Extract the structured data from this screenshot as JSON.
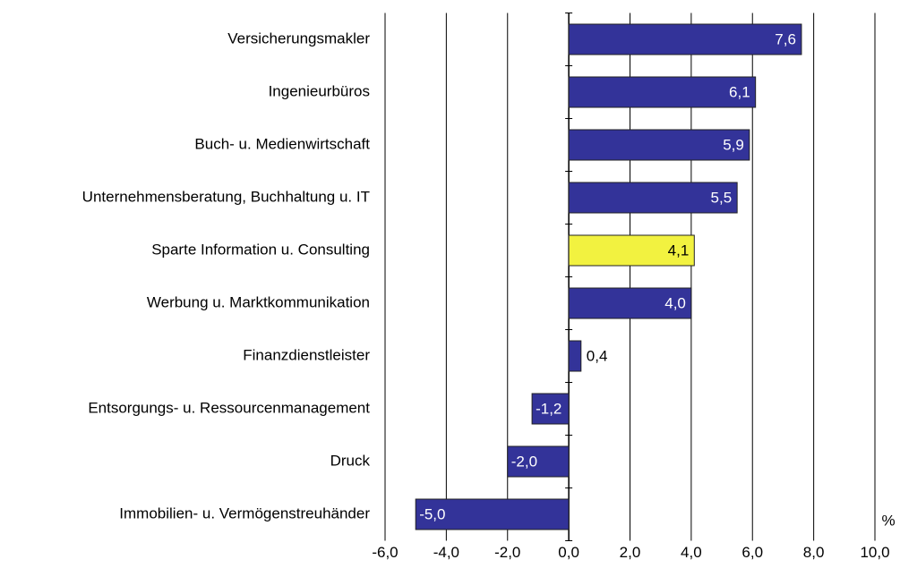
{
  "chart_data": {
    "type": "barh",
    "categories": [
      "Versicherungsmakler",
      "Ingenieurbüros",
      "Buch- u. Medienwirtschaft",
      "Unternehmensberatung, Buchhaltung u. IT",
      "Sparte Information u. Consulting",
      "Werbung u. Marktkommunikation",
      "Finanzdienstleister",
      "Entsorgungs- u. Ressourcenmanagement",
      "Druck",
      "Immobilien- u. Vermögenstreuhänder"
    ],
    "values": [
      7.6,
      6.1,
      5.9,
      5.5,
      4.1,
      4.0,
      0.4,
      -1.2,
      -2.0,
      -5.0
    ],
    "value_labels": [
      "7,6",
      "6,1",
      "5,9",
      "5,5",
      "4,1",
      "4,0",
      "0,4",
      "-1,2",
      "-2,0",
      "-5,0"
    ],
    "colors": [
      "#333399",
      "#333399",
      "#333399",
      "#333399",
      "#f2f240",
      "#333399",
      "#333399",
      "#333399",
      "#333399",
      "#333399"
    ],
    "xlim": [
      -6,
      10
    ],
    "xticks": [
      {
        "value": -6,
        "label": "-6,0"
      },
      {
        "value": -4,
        "label": "-4,0"
      },
      {
        "value": -2,
        "label": "-2,0"
      },
      {
        "value": 0,
        "label": "0,0"
      },
      {
        "value": 2,
        "label": "2,0"
      },
      {
        "value": 4,
        "label": "4,0"
      },
      {
        "value": 6,
        "label": "6,0"
      },
      {
        "value": 8,
        "label": "8,0"
      },
      {
        "value": 10,
        "label": "10,0"
      }
    ],
    "x_unit": "%",
    "grid": true
  }
}
